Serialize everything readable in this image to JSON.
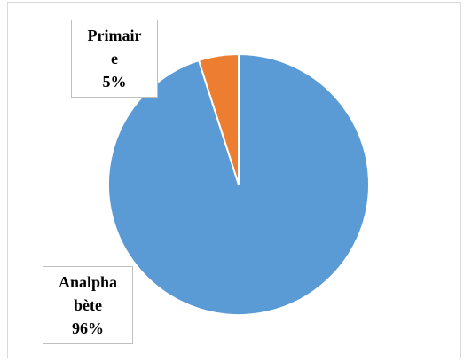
{
  "chart_data": {
    "type": "pie",
    "categories": [
      "Analphabète",
      "Primaire"
    ],
    "values": [
      96,
      5
    ],
    "value_labels": [
      "96%",
      "5%"
    ],
    "colors": [
      "#5b9bd5",
      "#ed7d31"
    ]
  }
}
